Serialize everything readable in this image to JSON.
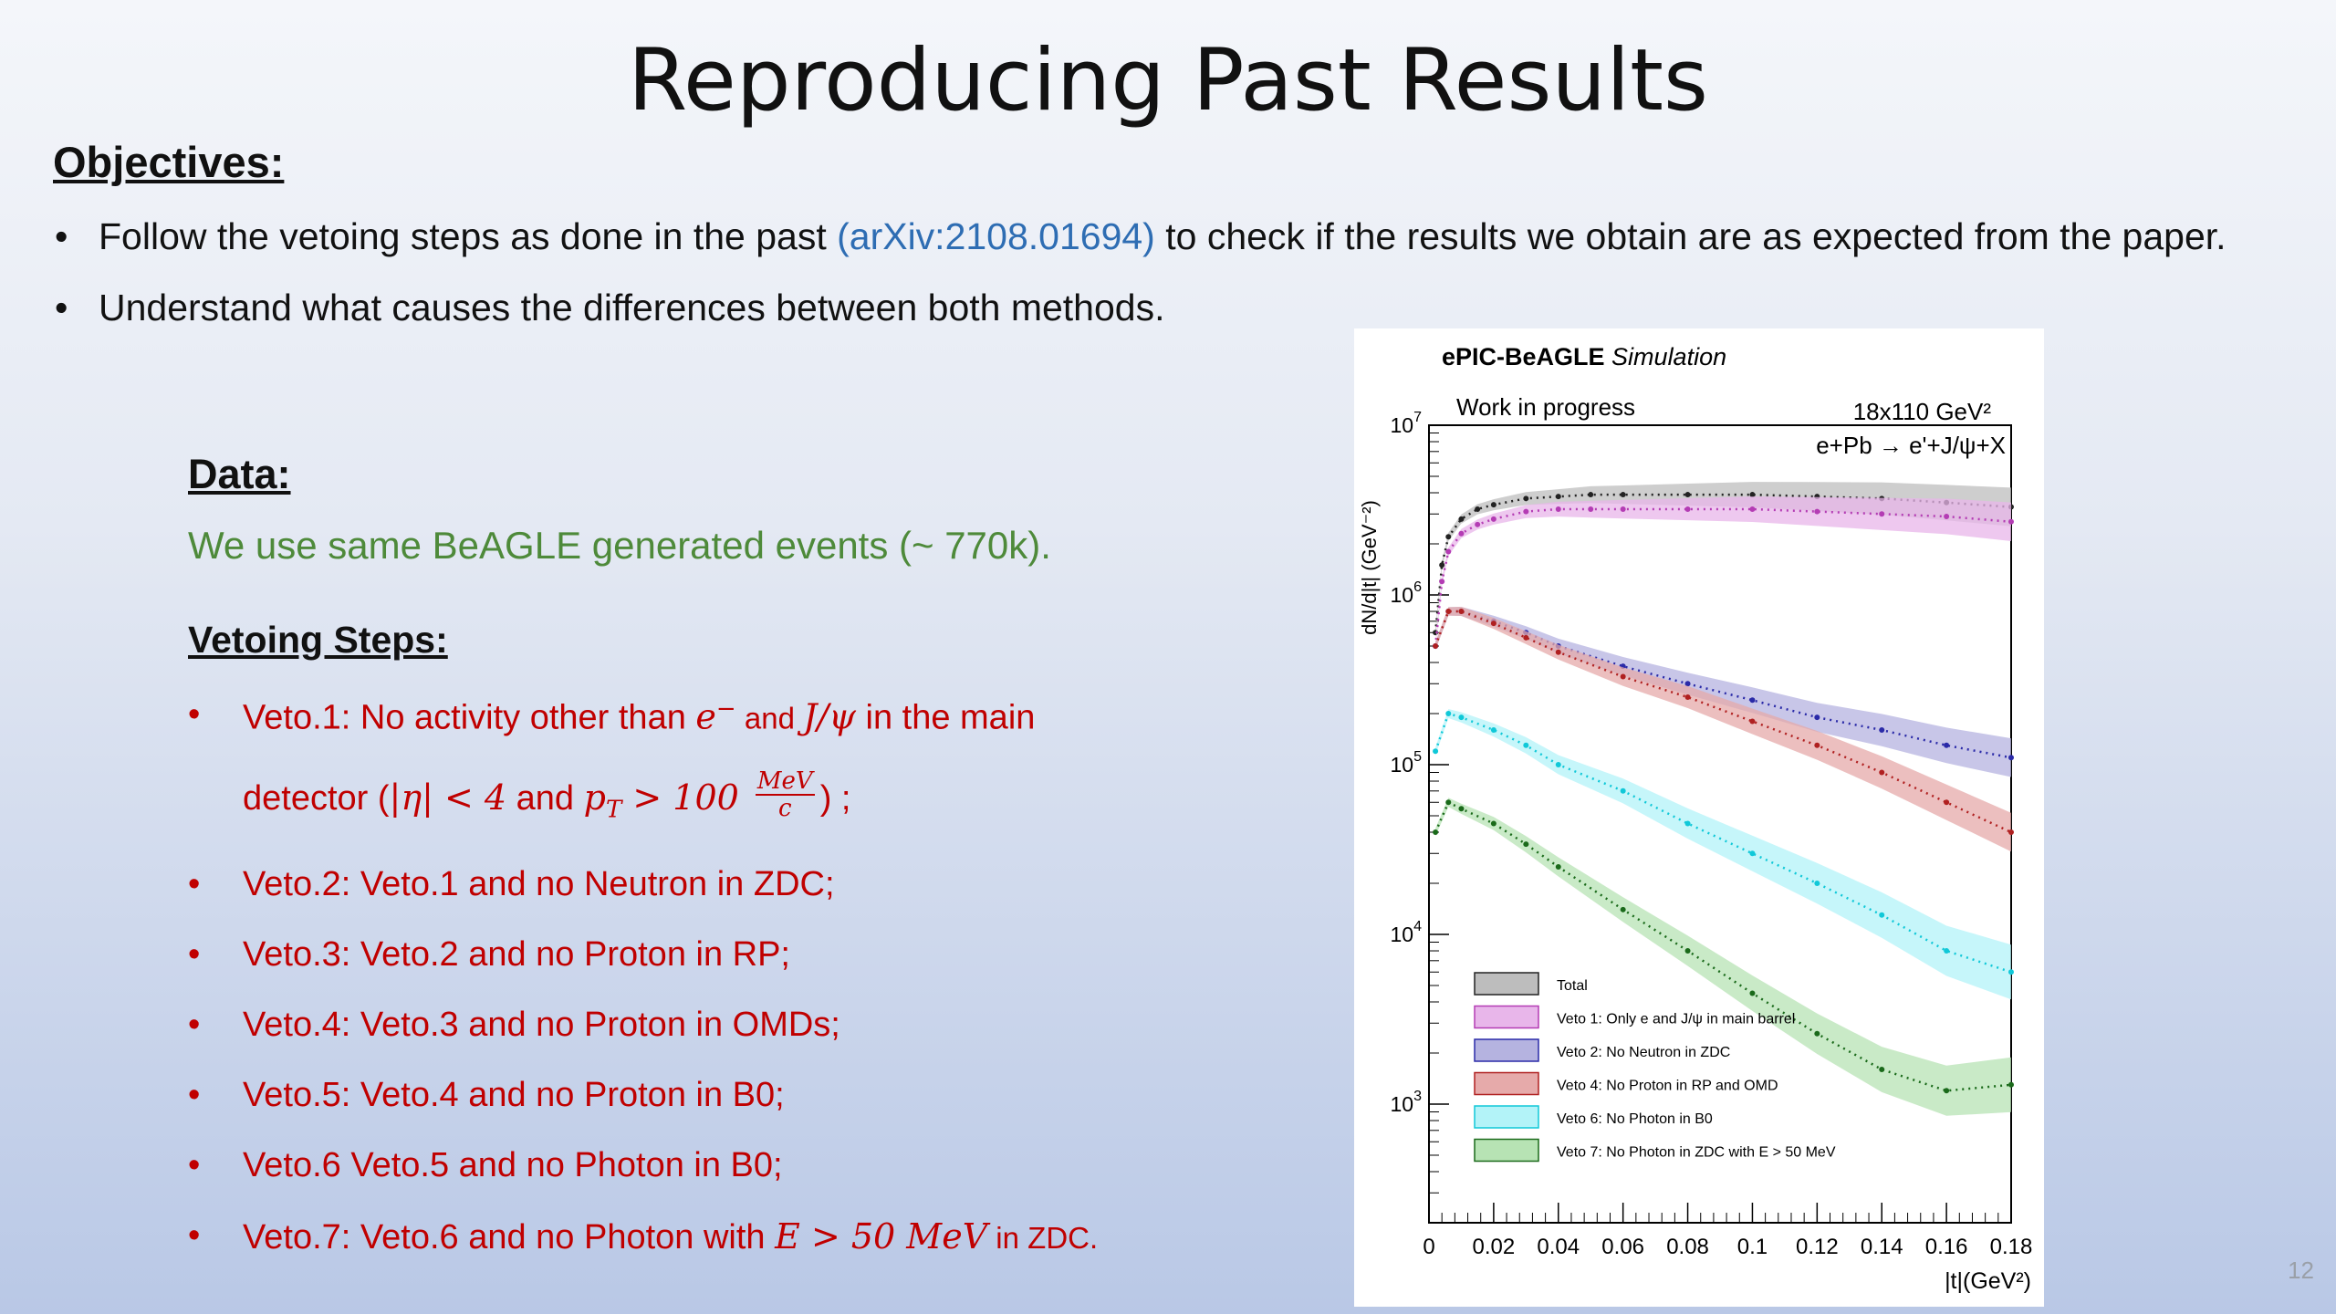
{
  "slide": {
    "title": "Reproducing Past Results",
    "objectives_heading": "Objectives:",
    "bullet1_pre": "Follow the vetoing steps as done in the past ",
    "bullet1_link": "(arXiv:2108.01694)",
    "bullet1_post": " to check if the results we obtain are as expected from the paper.",
    "bullet2": "Understand what causes the differences between both methods.",
    "data_heading": "Data:",
    "data_text": "We use same BeAGLE generated events (~ 770k).",
    "vetoing_heading": "Vetoing Steps:",
    "veto1_a": "Veto.1: No activity other than ",
    "veto1_e": "e",
    "veto1_sup": "−",
    "veto1_and": " and ",
    "veto1_jpsi": "J/ψ",
    "veto1_b": " in the main",
    "veto1_c": "detector (",
    "veto1_eta": "|η| < 4",
    "veto1_and2": " and ",
    "veto1_pt": "p",
    "veto1_pt_sub": "T",
    "veto1_gt": " > 100 ",
    "veto1_frac_num": "MeV",
    "veto1_frac_den": "c",
    "veto1_end": ") ;",
    "veto2": "Veto.2: Veto.1 and no Neutron in ZDC;",
    "veto3": "Veto.3: Veto.2 and no Proton in RP;",
    "veto4": "Veto.4: Veto.3 and no Proton in OMDs;",
    "veto5": "Veto.5: Veto.4 and no Proton in B0;",
    "veto6": "Veto.6 Veto.5 and no Photon in B0;",
    "veto7_a": "Veto.7: Veto.6 and no Photon with ",
    "veto7_math": "E > 50 MeV",
    "veto7_b": " in ZDC.",
    "slide_number": "12",
    "bullet_char": "•"
  },
  "chart_data": {
    "type": "line",
    "header_bold": "ePIC-BeAGLE",
    "header_italic": " Simulation",
    "annotation_wip": "Work in progress",
    "annotation_energy": "18x110 GeV²",
    "annotation_process": "e+Pb → e'+J/ψ+X",
    "xlabel": "|t|(GeV²)",
    "ylabel": "dN/d|t| (GeV⁻²)",
    "xlim": [
      0,
      0.18
    ],
    "ylim": [
      200,
      10000000
    ],
    "log_y": true,
    "x_ticks": [
      "0",
      "0.02",
      "0.04",
      "0.06",
      "0.08",
      "0.1",
      "0.12",
      "0.14",
      "0.16",
      "0.18"
    ],
    "y_ticks": [
      {
        "base": "10",
        "exp": "3",
        "value": 1000
      },
      {
        "base": "10",
        "exp": "4",
        "value": 10000
      },
      {
        "base": "10",
        "exp": "5",
        "value": 100000
      },
      {
        "base": "10",
        "exp": "6",
        "value": 1000000
      },
      {
        "base": "10",
        "exp": "7",
        "value": 10000000
      }
    ],
    "legend_position": "bottom-left",
    "series": [
      {
        "name": "Total",
        "color": "#222222",
        "band": "#bdbdbd",
        "x": [
          0.002,
          0.004,
          0.006,
          0.01,
          0.015,
          0.02,
          0.03,
          0.04,
          0.05,
          0.06,
          0.08,
          0.1,
          0.12,
          0.14,
          0.16,
          0.18
        ],
        "y": [
          600000,
          1500000,
          2200000,
          2800000,
          3200000,
          3400000,
          3700000,
          3800000,
          3900000,
          3900000,
          3900000,
          3900000,
          3800000,
          3700000,
          3500000,
          3300000
        ]
      },
      {
        "name": "Veto 1: Only e and J/ψ in main barrel",
        "color": "#b43cb4",
        "band": "#e8b6ea",
        "x": [
          0.002,
          0.004,
          0.006,
          0.01,
          0.015,
          0.02,
          0.03,
          0.04,
          0.05,
          0.06,
          0.08,
          0.1,
          0.12,
          0.14,
          0.16,
          0.18
        ],
        "y": [
          500000,
          1200000,
          1800000,
          2300000,
          2600000,
          2800000,
          3100000,
          3200000,
          3200000,
          3200000,
          3200000,
          3200000,
          3100000,
          3000000,
          2900000,
          2700000
        ]
      },
      {
        "name": "Veto 2: No Neutron in ZDC",
        "color": "#2a2aa8",
        "band": "#b5b3e0",
        "x": [
          0.002,
          0.006,
          0.01,
          0.02,
          0.03,
          0.04,
          0.06,
          0.08,
          0.1,
          0.12,
          0.14,
          0.16,
          0.18
        ],
        "y": [
          500000,
          800000,
          800000,
          700000,
          600000,
          500000,
          380000,
          300000,
          240000,
          190000,
          160000,
          130000,
          110000
        ]
      },
      {
        "name": "Veto 4: No Proton in RP and OMD",
        "color": "#b02020",
        "band": "#e6aaaa",
        "x": [
          0.002,
          0.006,
          0.01,
          0.02,
          0.03,
          0.04,
          0.06,
          0.08,
          0.1,
          0.12,
          0.14,
          0.16,
          0.18
        ],
        "y": [
          500000,
          800000,
          800000,
          680000,
          560000,
          460000,
          330000,
          250000,
          180000,
          130000,
          90000,
          60000,
          40000
        ]
      },
      {
        "name": "Veto 6: No Photon in B0",
        "color": "#10c8d8",
        "band": "#b3f3f8",
        "x": [
          0.002,
          0.006,
          0.01,
          0.02,
          0.03,
          0.04,
          0.06,
          0.08,
          0.1,
          0.12,
          0.14,
          0.16,
          0.18
        ],
        "y": [
          120000,
          200000,
          190000,
          160000,
          130000,
          100000,
          70000,
          45000,
          30000,
          20000,
          13000,
          8000,
          6000
        ]
      },
      {
        "name": "Veto 7: No Photon in ZDC with E > 50 MeV",
        "color": "#1a6a1a",
        "band": "#b7e3b4",
        "x": [
          0.002,
          0.006,
          0.01,
          0.02,
          0.03,
          0.04,
          0.06,
          0.08,
          0.1,
          0.12,
          0.14,
          0.16,
          0.18
        ],
        "y": [
          40000,
          60000,
          55000,
          45000,
          34000,
          25000,
          14000,
          8000,
          4500,
          2600,
          1600,
          1200,
          1300
        ]
      }
    ]
  }
}
